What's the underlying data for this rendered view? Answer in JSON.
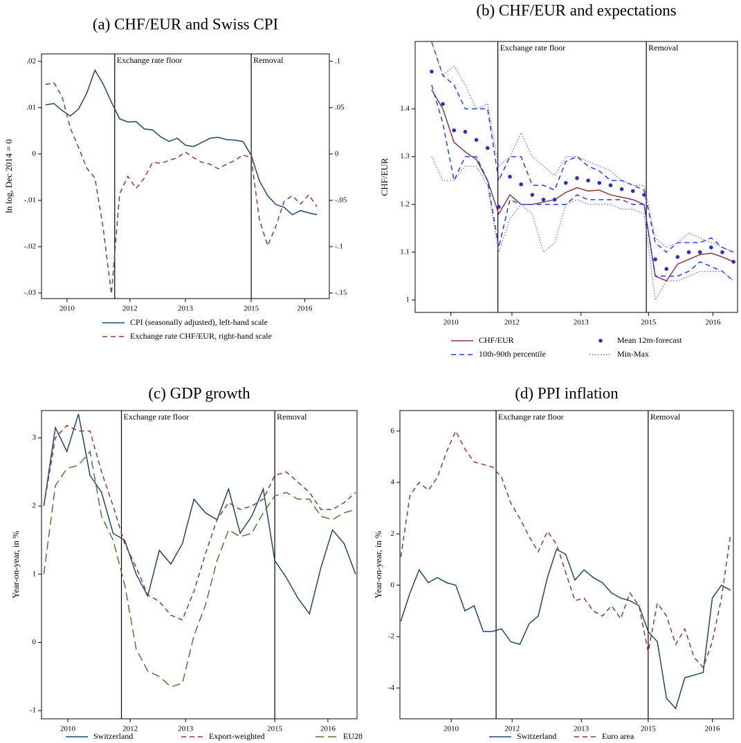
{
  "chart_data": [
    {
      "type": "line",
      "title": "(a) CHF/EUR and Swiss CPI",
      "ylabel": "ln log, Dec 2014 = 0",
      "x": [
        2010,
        2010.2,
        2010.4,
        2010.6,
        2010.8,
        2011,
        2011.2,
        2011.4,
        2011.6,
        2011.8,
        2012,
        2012.2,
        2012.4,
        2012.6,
        2012.8,
        2013,
        2013.2,
        2013.4,
        2013.6,
        2013.8,
        2014,
        2014.2,
        2014.4,
        2014.6,
        2014.8,
        2015,
        2015.2,
        2015.4,
        2015.6,
        2015.8,
        2016,
        2016.2,
        2016.4,
        2016.6
      ],
      "xlim": [
        2009.9,
        2016.9
      ],
      "xticks": [
        {
          "value": 2010.52,
          "label": "2010"
        },
        {
          "value": 2012.05,
          "label": "2012"
        },
        {
          "value": 2013.4,
          "label": "2013"
        },
        2015,
        {
          "value": 2016.3,
          "label": "2016"
        }
      ],
      "ylim": [
        -0.0312,
        0.0216
      ],
      "yticks": [
        {
          "value": -0.03,
          "label": "-.03"
        },
        {
          "value": -0.02,
          "label": "-.02"
        },
        {
          "value": -0.01,
          "label": "-.01"
        },
        0,
        {
          "value": 0.01,
          "label": ".01"
        },
        {
          "value": 0.02,
          "label": ".02"
        }
      ],
      "y2lim": [
        -0.156,
        0.108
      ],
      "y2ticks": [
        {
          "value": -0.15,
          "label": "-.15"
        },
        {
          "value": -0.1,
          "label": "-.1"
        },
        {
          "value": -0.05,
          "label": "-.05"
        },
        0,
        {
          "value": 0.05,
          "label": ".05"
        },
        {
          "value": 0.1,
          "label": ".1"
        }
      ],
      "vlines": [
        {
          "x": 2011.68,
          "label": "Exchange rate floor"
        },
        {
          "x": 2015.0,
          "label": "Removal"
        }
      ],
      "series": [
        {
          "name": "CPI (seasonally adjusted), left-hand scale",
          "color": "#1a476f",
          "style": "solid",
          "values": [
            0.0106,
            0.0109,
            0.0094,
            0.0082,
            0.0097,
            0.0131,
            0.0181,
            0.0151,
            0.0112,
            0.0076,
            0.0069,
            0.007,
            0.0054,
            0.0052,
            0.0037,
            0.0027,
            0.0034,
            0.0019,
            0.0016,
            0.0025,
            0.0034,
            0.0036,
            0.0031,
            0.003,
            0.0027,
            -0.0003,
            -0.0058,
            -0.009,
            -0.0109,
            -0.0115,
            -0.0131,
            -0.0122,
            -0.0127,
            -0.0131
          ]
        },
        {
          "name": "Exchange rate CHF/EUR, right-hand scale",
          "color": "#90353b",
          "style": "dashed",
          "axis": "y2",
          "values": [
            0.075,
            0.077,
            0.062,
            0.028,
            0.007,
            -0.015,
            -0.026,
            -0.08,
            -0.151,
            -0.043,
            -0.024,
            -0.037,
            -0.026,
            -0.009,
            -0.01,
            -0.007,
            -0.004,
            0.002,
            -0.004,
            -0.009,
            -0.011,
            -0.016,
            -0.011,
            -0.007,
            -0.001,
            -0.004,
            -0.071,
            -0.099,
            -0.078,
            -0.051,
            -0.045,
            -0.054,
            -0.044,
            -0.057
          ]
        }
      ]
    },
    {
      "type": "line",
      "title": "(b) CHF/EUR and expectations",
      "ylabel": "CHF/EUR",
      "x": [
        2010.2,
        2010.45,
        2010.7,
        2010.95,
        2011.2,
        2011.45,
        2011.7,
        2011.95,
        2012.2,
        2012.45,
        2012.7,
        2012.95,
        2013.2,
        2013.45,
        2013.7,
        2013.95,
        2014.2,
        2014.45,
        2014.7,
        2014.95,
        2015.2,
        2015.45,
        2015.7,
        2015.95,
        2016.2,
        2016.45,
        2016.7,
        2016.95
      ],
      "xlim": [
        2009.83,
        2017.04
      ],
      "xticks": [
        {
          "value": 2010.63,
          "label": "2010"
        },
        {
          "value": 2011.995,
          "label": "2012"
        },
        {
          "value": 2013.54,
          "label": "2013"
        },
        {
          "value": 2015.05,
          "label": "2015"
        },
        {
          "value": 2016.49,
          "label": "2016"
        }
      ],
      "ylim": [
        0.974,
        1.541
      ],
      "yticks": [
        1,
        1.1,
        1.2,
        1.3,
        1.4
      ],
      "vlines": [
        {
          "x": 2011.68,
          "label": "Exchange rate floor"
        },
        {
          "x": 2015.0,
          "label": "Removal"
        }
      ],
      "series": [
        {
          "name": "CHF/EUR",
          "color": "#90353b",
          "style": "solid",
          "values": [
            1.44,
            1.4,
            1.33,
            1.31,
            1.294,
            1.25,
            1.18,
            1.22,
            1.2,
            1.2,
            1.205,
            1.21,
            1.225,
            1.235,
            1.228,
            1.23,
            1.22,
            1.215,
            1.21,
            1.2,
            1.05,
            1.04,
            1.075,
            1.085,
            1.095,
            1.098,
            1.09,
            1.08
          ]
        },
        {
          "name": "Mean 12m-forecast",
          "color": "#2d2dc8",
          "style": "dots",
          "values": [
            1.478,
            1.41,
            1.355,
            1.352,
            1.335,
            1.318,
            1.195,
            1.258,
            1.242,
            1.22,
            1.21,
            1.21,
            1.245,
            1.255,
            1.25,
            1.245,
            1.24,
            1.232,
            1.228,
            1.22,
            1.085,
            1.065,
            1.09,
            1.1,
            1.1,
            1.11,
            1.1,
            1.08
          ]
        },
        {
          "name": "10th-90th percentile",
          "color": "#1e3cff",
          "style": "dashed",
          "low": [
            1.45,
            1.37,
            1.25,
            1.3,
            1.3,
            1.25,
            1.11,
            1.21,
            1.2,
            1.2,
            1.2,
            1.2,
            1.2,
            1.22,
            1.21,
            1.21,
            1.21,
            1.21,
            1.2,
            1.2,
            1.05,
            1.05,
            1.05,
            1.06,
            1.08,
            1.07,
            1.06,
            1.04
          ],
          "high": [
            1.54,
            1.47,
            1.45,
            1.4,
            1.4,
            1.4,
            1.25,
            1.3,
            1.3,
            1.24,
            1.24,
            1.23,
            1.29,
            1.3,
            1.28,
            1.27,
            1.25,
            1.25,
            1.24,
            1.23,
            1.12,
            1.1,
            1.12,
            1.12,
            1.12,
            1.13,
            1.11,
            1.1
          ]
        },
        {
          "name": "Min-Max",
          "color": "#5a5aff",
          "style": "dotted",
          "low": [
            1.3,
            1.25,
            1.25,
            1.28,
            1.28,
            1.24,
            1.1,
            1.17,
            1.2,
            1.18,
            1.1,
            1.12,
            1.2,
            1.21,
            1.2,
            1.2,
            1.2,
            1.19,
            1.19,
            1.18,
            1.0,
            1.04,
            1.04,
            1.05,
            1.06,
            1.06,
            1.06,
            1.04
          ],
          "high": [
            1.54,
            1.47,
            1.49,
            1.45,
            1.4,
            1.41,
            1.28,
            1.3,
            1.35,
            1.3,
            1.28,
            1.26,
            1.3,
            1.3,
            1.29,
            1.28,
            1.27,
            1.25,
            1.24,
            1.24,
            1.13,
            1.11,
            1.12,
            1.14,
            1.13,
            1.12,
            1.11,
            1.1
          ]
        }
      ]
    },
    {
      "type": "line",
      "title": "(c) GDP growth",
      "ylabel": "Year-on-year, in %",
      "x": [
        2010,
        2010.25,
        2010.5,
        2010.75,
        2011,
        2011.25,
        2011.5,
        2011.75,
        2012,
        2012.25,
        2012.5,
        2012.75,
        2013,
        2013.25,
        2013.5,
        2013.75,
        2014,
        2014.25,
        2014.5,
        2014.75,
        2015,
        2015.25,
        2015.5,
        2015.75,
        2016,
        2016.25,
        2016.5,
        2016.75
      ],
      "xlim": [
        2009.95,
        2016.78
      ],
      "xticks": [
        {
          "value": 2010.52,
          "label": "2010"
        },
        {
          "value": 2011.87,
          "label": "2012"
        },
        {
          "value": 2013.07,
          "label": "2013"
        },
        2015,
        {
          "value": 2016.15,
          "label": "2016"
        }
      ],
      "ylim": [
        -1.12,
        3.4
      ],
      "yticks": [
        -1,
        0,
        1,
        2,
        3
      ],
      "vlines": [
        {
          "x": 2011.68,
          "label": "Exchange rate floor"
        },
        {
          "x": 2015.0,
          "label": "Removal"
        }
      ],
      "series": [
        {
          "name": "Switzerland",
          "color": "#1a476f",
          "style": "solid",
          "values": [
            2.0,
            3.15,
            2.8,
            3.35,
            2.45,
            2.2,
            1.6,
            1.5,
            1.0,
            0.68,
            1.35,
            1.15,
            1.45,
            2.1,
            1.9,
            1.8,
            2.25,
            1.6,
            1.85,
            2.25,
            1.2,
            0.95,
            0.65,
            0.42,
            1.1,
            1.65,
            1.45,
            1.0
          ]
        },
        {
          "name": "Export-weighted",
          "color": "#90353b",
          "style": "dashed",
          "values": [
            2.0,
            3.0,
            3.18,
            3.1,
            3.1,
            2.5,
            2.0,
            1.45,
            1.1,
            0.7,
            0.6,
            0.4,
            0.33,
            0.75,
            1.3,
            1.8,
            2.05,
            1.95,
            2.0,
            2.1,
            2.45,
            2.5,
            2.35,
            2.2,
            1.95,
            1.95,
            2.05,
            2.2
          ]
        },
        {
          "name": "EU28",
          "color": "#55752f",
          "style": "longdash",
          "values": [
            1.0,
            2.3,
            2.55,
            2.6,
            2.8,
            1.85,
            1.5,
            0.85,
            -0.1,
            -0.42,
            -0.5,
            -0.65,
            -0.6,
            0.1,
            0.55,
            1.2,
            1.65,
            1.55,
            1.6,
            1.9,
            2.15,
            2.2,
            2.1,
            2.1,
            1.85,
            1.8,
            1.9,
            1.95
          ]
        }
      ]
    },
    {
      "type": "line",
      "title": "(d) PPI inflation",
      "ylabel": "Year-on-year, in %",
      "x": [
        2009.6,
        2009.8,
        2010,
        2010.2,
        2010.4,
        2010.6,
        2010.8,
        2011,
        2011.2,
        2011.4,
        2011.6,
        2011.8,
        2012,
        2012.2,
        2012.4,
        2012.6,
        2012.8,
        2013,
        2013.2,
        2013.4,
        2013.6,
        2013.8,
        2014,
        2014.2,
        2014.4,
        2014.6,
        2014.8,
        2015,
        2015.2,
        2015.4,
        2015.6,
        2015.8,
        2016,
        2016.2,
        2016.4,
        2016.6,
        2016.8
      ],
      "xlim": [
        2009.58,
        2016.86
      ],
      "xticks": [
        {
          "value": 2010.7,
          "label": "2010"
        },
        {
          "value": 2012.03,
          "label": "2012"
        },
        {
          "value": 2013.54,
          "label": "2013"
        },
        2015,
        {
          "value": 2016.4,
          "label": "2016"
        }
      ],
      "ylim": [
        -5.2,
        6.8
      ],
      "yticks": [
        -4,
        -2,
        0,
        2,
        4,
        6
      ],
      "vlines": [
        {
          "x": 2011.68,
          "label": "Exchange rate floor"
        },
        {
          "x": 2015.0,
          "label": "Removal"
        }
      ],
      "series": [
        {
          "name": "Switzerland",
          "color": "#1a476f",
          "style": "solid",
          "values": [
            -1.4,
            -0.3,
            0.6,
            0.1,
            0.3,
            0.1,
            0.0,
            -1.0,
            -0.8,
            -1.8,
            -1.8,
            -1.7,
            -2.2,
            -2.3,
            -1.5,
            -1.2,
            0.3,
            1.4,
            1.2,
            0.2,
            0.6,
            0.3,
            0.1,
            -0.3,
            -0.5,
            -0.6,
            -0.8,
            -1.8,
            -2.2,
            -4.4,
            -4.8,
            -3.6,
            -3.5,
            -3.4,
            -0.5,
            0.0,
            -0.2
          ]
        },
        {
          "name": "Euro area",
          "color": "#90353b",
          "style": "dashed",
          "values": [
            1.1,
            3.5,
            4.0,
            3.7,
            4.2,
            5.2,
            6.0,
            5.3,
            4.8,
            4.7,
            4.6,
            4.2,
            3.2,
            2.6,
            1.9,
            1.3,
            2.1,
            1.6,
            0.5,
            -0.6,
            -0.5,
            -1.0,
            -1.2,
            -0.8,
            -1.3,
            -0.3,
            -0.8,
            -2.6,
            -0.7,
            -1.2,
            -2.3,
            -1.7,
            -2.8,
            -3.2,
            -2.2,
            -0.5,
            2.0
          ]
        }
      ]
    }
  ]
}
